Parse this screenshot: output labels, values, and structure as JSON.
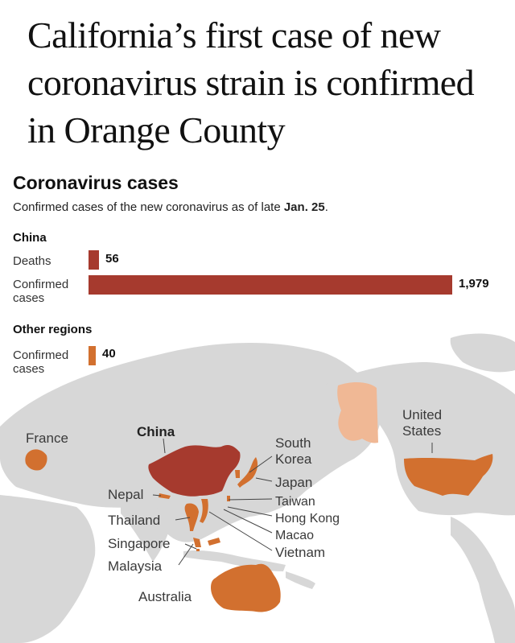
{
  "headline": {
    "line1": "California’s first case of new",
    "line2": "coronavirus strain is confirmed",
    "line3": "in Orange County"
  },
  "chart_data": {
    "type": "bar",
    "title": "Coronavirus cases",
    "subtitle_prefix": "Confirmed cases of the new coronavirus as of late ",
    "subtitle_date": "Jan. 25",
    "subtitle_suffix": ".",
    "scale_max": 1979,
    "groups": [
      {
        "name": "China",
        "rows": [
          {
            "label": "Deaths",
            "value": 56,
            "value_label": "56",
            "color": "#a63a2e"
          },
          {
            "label_line1": "Confirmed",
            "label_line2": "cases",
            "value": 1979,
            "value_label": "1,979",
            "color": "#a63a2e"
          }
        ]
      },
      {
        "name": "Other regions",
        "rows": [
          {
            "label_line1": "Confirmed",
            "label_line2": "cases",
            "value": 40,
            "value_label": "40",
            "color": "#d2702f"
          }
        ]
      }
    ]
  },
  "map": {
    "colors": {
      "land": "#d7d7d7",
      "china": "#a63a2e",
      "affected": "#d2702f",
      "alaska": "#f0b895"
    },
    "labels": {
      "france": "France",
      "china": "China",
      "south_korea_1": "South",
      "south_korea_2": "Korea",
      "japan": "Japan",
      "taiwan": "Taiwan",
      "hong_kong": "Hong Kong",
      "macao": "Macao",
      "vietnam": "Vietnam",
      "nepal": "Nepal",
      "thailand": "Thailand",
      "singapore": "Singapore",
      "malaysia": "Malaysia",
      "australia": "Australia",
      "united_states_1": "United",
      "united_states_2": "States"
    }
  }
}
